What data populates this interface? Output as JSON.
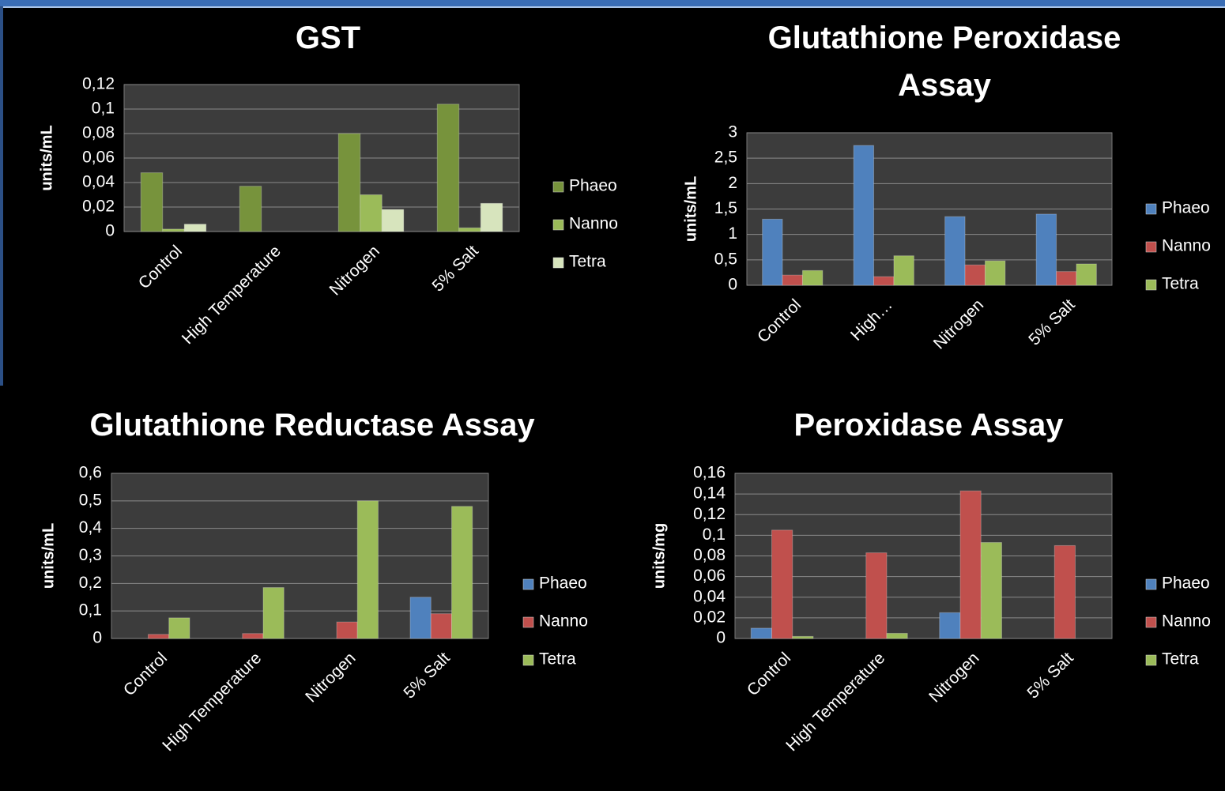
{
  "chart_data": [
    {
      "type": "bar",
      "title": "GST",
      "y_label": "units/mL",
      "categories": [
        "Control",
        "High Temperature",
        "Nitrogen",
        "5% Salt"
      ],
      "series": [
        {
          "name": "Phaeo",
          "color": "#77933c",
          "values": [
            0.048,
            0.037,
            0.08,
            0.104
          ]
        },
        {
          "name": "Nanno",
          "color": "#9bbb59",
          "values": [
            0.002,
            0,
            0.03,
            0.003
          ]
        },
        {
          "name": "Tetra",
          "color": "#d7e4bd",
          "values": [
            0.006,
            0,
            0.018,
            0.023
          ]
        }
      ],
      "ylim": [
        0,
        0.12
      ],
      "yticks": [
        0,
        {
          "value": 0.02,
          "label": "0,02"
        },
        {
          "value": 0.04,
          "label": "0,04"
        },
        {
          "value": 0.06,
          "label": "0,06"
        },
        {
          "value": 0.08,
          "label": "0,08"
        },
        {
          "value": 0.1,
          "label": "0,1"
        },
        {
          "value": 0.12,
          "label": "0,12"
        }
      ],
      "grid": true
    },
    {
      "type": "bar",
      "title": "Glutathione Peroxidase Assay",
      "y_label": "units/mL",
      "categories": [
        "Control",
        "High…",
        "Nitrogen",
        "5% Salt"
      ],
      "series": [
        {
          "name": "Phaeo",
          "color": "#4f81bd",
          "values": [
            1.3,
            2.75,
            1.35,
            1.4
          ]
        },
        {
          "name": "Nanno",
          "color": "#c0504d",
          "values": [
            0.2,
            0.17,
            0.4,
            0.27
          ]
        },
        {
          "name": "Tetra",
          "color": "#9bbb59",
          "values": [
            0.29,
            0.58,
            0.48,
            0.42
          ]
        }
      ],
      "ylim": [
        0,
        3
      ],
      "yticks": [
        0,
        {
          "value": 0.5,
          "label": "0,5"
        },
        1,
        {
          "value": 1.5,
          "label": "1,5"
        },
        2,
        {
          "value": 2.5,
          "label": "2,5"
        },
        3
      ],
      "grid": true
    },
    {
      "type": "bar",
      "title": "Glutathione Reductase Assay",
      "y_label": "units/mL",
      "categories": [
        "Control",
        "High Temperature",
        "Nitrogen",
        "5% Salt"
      ],
      "series": [
        {
          "name": "Phaeo",
          "color": "#4f81bd",
          "values": [
            0,
            0,
            0,
            0.15
          ]
        },
        {
          "name": "Nanno",
          "color": "#c0504d",
          "values": [
            0.015,
            0.018,
            0.06,
            0.09
          ]
        },
        {
          "name": "Tetra",
          "color": "#9bbb59",
          "values": [
            0.075,
            0.185,
            0.5,
            0.48
          ]
        }
      ],
      "ylim": [
        0,
        0.6
      ],
      "yticks": [
        0,
        {
          "value": 0.1,
          "label": "0,1"
        },
        {
          "value": 0.2,
          "label": "0,2"
        },
        {
          "value": 0.3,
          "label": "0,3"
        },
        {
          "value": 0.4,
          "label": "0,4"
        },
        {
          "value": 0.5,
          "label": "0,5"
        },
        {
          "value": 0.6,
          "label": "0,6"
        }
      ],
      "grid": true
    },
    {
      "type": "bar",
      "title": "Peroxidase Assay",
      "y_label": "units/mg",
      "categories": [
        "Control",
        "High Temperature",
        "Nitrogen",
        "5% Salt"
      ],
      "series": [
        {
          "name": "Phaeo",
          "color": "#4f81bd",
          "values": [
            0.01,
            0,
            0.025,
            0
          ]
        },
        {
          "name": "Nanno",
          "color": "#c0504d",
          "values": [
            0.105,
            0.083,
            0.143,
            0.09
          ]
        },
        {
          "name": "Tetra",
          "color": "#9bbb59",
          "values": [
            0.002,
            0.005,
            0.093,
            0
          ]
        }
      ],
      "ylim": [
        0,
        0.16
      ],
      "yticks": [
        0,
        {
          "value": 0.02,
          "label": "0,02"
        },
        {
          "value": 0.04,
          "label": "0,04"
        },
        {
          "value": 0.06,
          "label": "0,06"
        },
        {
          "value": 0.08,
          "label": "0,08"
        },
        {
          "value": 0.1,
          "label": "0,1"
        },
        {
          "value": 0.12,
          "label": "0,12"
        },
        {
          "value": 0.14,
          "label": "0,14"
        },
        {
          "value": 0.16,
          "label": "0,16"
        }
      ],
      "grid": true
    }
  ]
}
